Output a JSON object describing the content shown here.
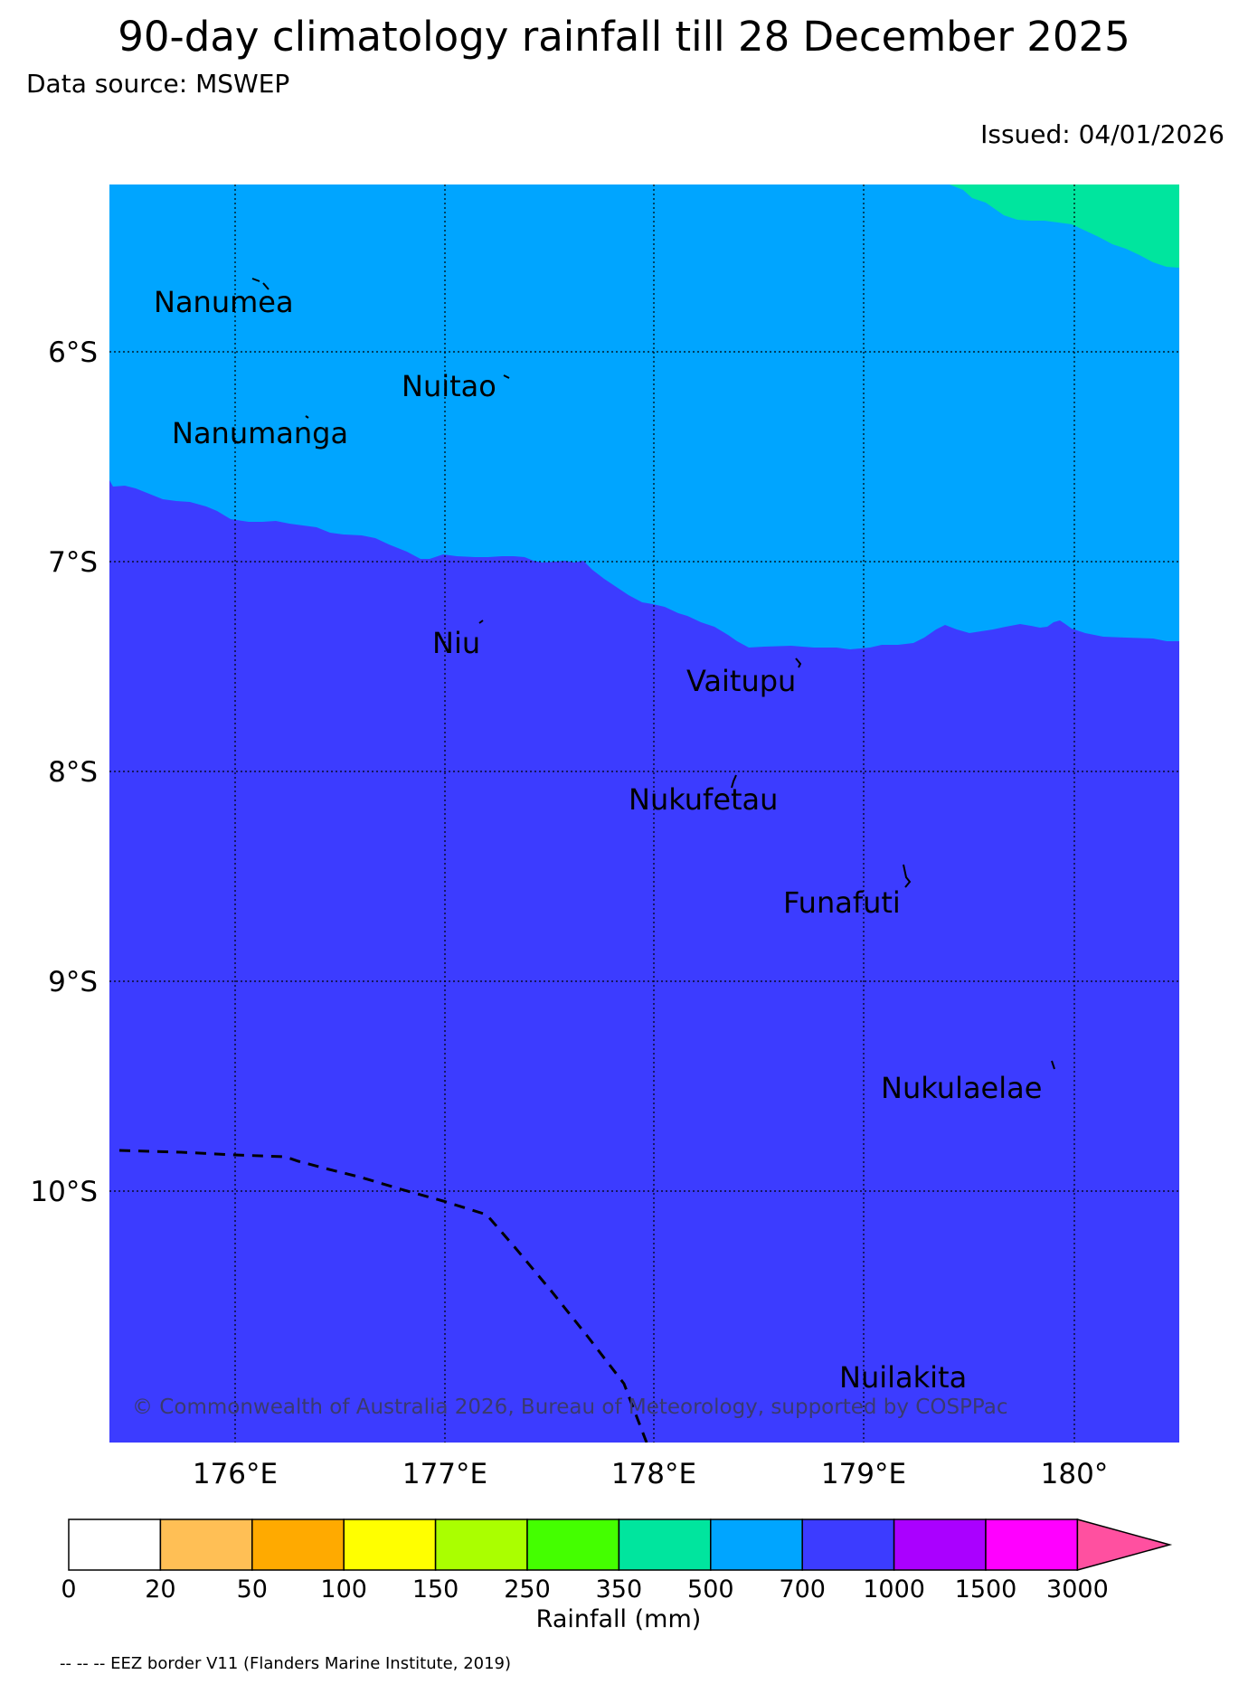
{
  "title": "90-day climatology rainfall till 28 December 2025",
  "data_source": "Data source: MSWEP",
  "issued": "Issued: 04/01/2026",
  "copyright": "© Commonwealth of Australia 2026, Bureau of Meteorology, supported by COSPPac",
  "latitude_ticks": [
    "6°S",
    "7°S",
    "8°S",
    "9°S",
    "10°S"
  ],
  "longitude_ticks": [
    "176°E",
    "177°E",
    "178°E",
    "179°E",
    "180°"
  ],
  "islands": [
    {
      "name": "Nanumea"
    },
    {
      "name": "Nuitao"
    },
    {
      "name": "Nanumanga"
    },
    {
      "name": "Niu"
    },
    {
      "name": "Vaitupu"
    },
    {
      "name": "Nukufetau"
    },
    {
      "name": "Funafuti"
    },
    {
      "name": "Nukulaelae"
    },
    {
      "name": "Nuilakita"
    }
  ],
  "colorbar": {
    "label": "Rainfall (mm)",
    "ticks": [
      "0",
      "20",
      "50",
      "100",
      "150",
      "250",
      "350",
      "500",
      "700",
      "1000",
      "1500",
      "3000"
    ],
    "colors": [
      "#ffffff",
      "#ffbf55",
      "#ffaa00",
      "#ffff00",
      "#aaff00",
      "#44ff00",
      "#00e59e",
      "#00a5ff",
      "#3c3cff",
      "#aa00ff",
      "#ff00ff",
      "#ff50a0"
    ]
  },
  "map_colors": {
    "band_500_700": "#00e59e",
    "band_700_1000": "#00a5ff",
    "band_1000_1500": "#3c3cff",
    "eez_border": "#000000"
  },
  "footnote": "-- -- -- EEZ border V11 (Flanders Marine Institute, 2019)"
}
